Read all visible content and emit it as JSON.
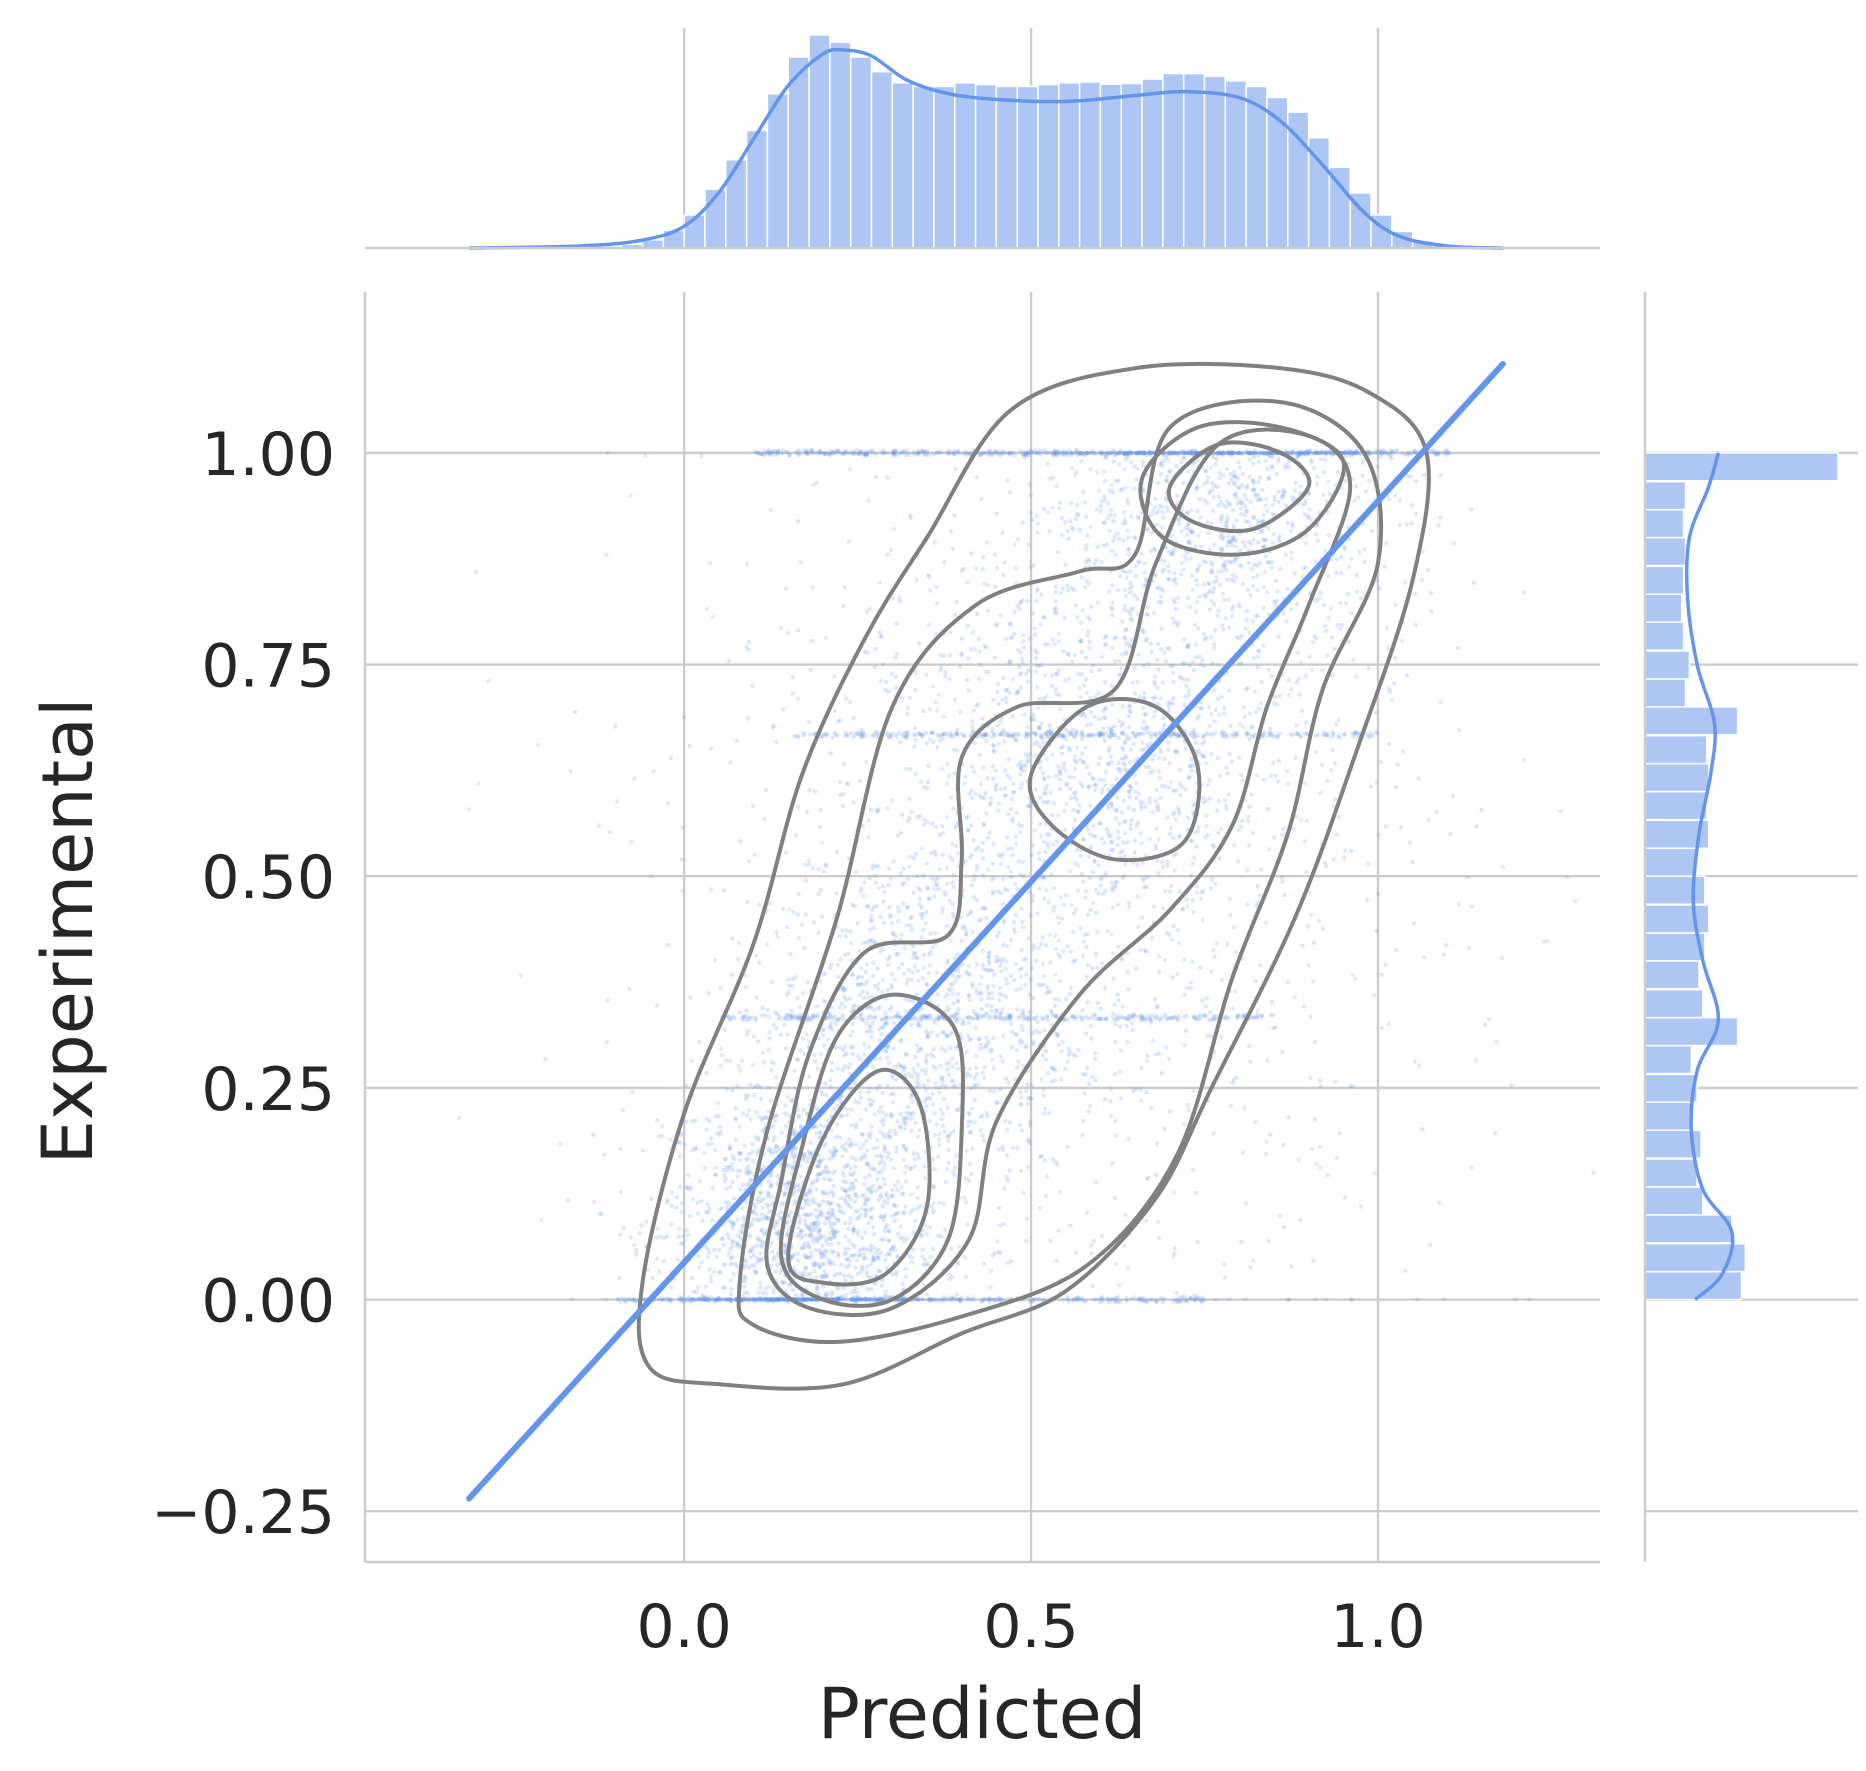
{
  "chart_data": {
    "type": "scatter",
    "subtype": "jointplot with kde contours, marginal histograms and regression line",
    "xlabel": "Predicted",
    "ylabel": "Experimental",
    "xlim": [
      -0.46,
      1.32
    ],
    "ylim": [
      -0.31,
      1.19
    ],
    "x_ticks": [
      {
        "value": 0.0,
        "label": "0.0"
      },
      {
        "value": 0.5,
        "label": "0.5"
      },
      {
        "value": 1.0,
        "label": "1.0"
      }
    ],
    "y_ticks": [
      {
        "value": -0.25,
        "label": "−0.25"
      },
      {
        "value": 0.0,
        "label": "0.00"
      },
      {
        "value": 0.25,
        "label": "0.25"
      },
      {
        "value": 0.5,
        "label": "0.50"
      },
      {
        "value": 0.75,
        "label": "0.75"
      },
      {
        "value": 1.0,
        "label": "1.00"
      }
    ],
    "grid": true,
    "colors": {
      "points": "#6495ed",
      "regression": "#6495ed",
      "contours": "#808080",
      "hist_fill": "#adc6f3",
      "grid": "#cccccc",
      "text": "#262626"
    },
    "regression_line": {
      "x": [
        -0.31,
        1.18
      ],
      "y": [
        -0.235,
        1.105
      ]
    },
    "scatter_clusters": [
      {
        "cx": 0.17,
        "cy": 0.08,
        "sx": 0.1,
        "sy": 0.09,
        "n": 1700
      },
      {
        "cx": 0.33,
        "cy": 0.33,
        "sx": 0.12,
        "sy": 0.1,
        "n": 900
      },
      {
        "cx": 0.58,
        "cy": 0.62,
        "sx": 0.14,
        "sy": 0.12,
        "n": 1000
      },
      {
        "cx": 0.78,
        "cy": 0.94,
        "sx": 0.13,
        "sy": 0.09,
        "n": 1100
      },
      {
        "cx": 0.55,
        "cy": 0.5,
        "sx": 0.28,
        "sy": 0.3,
        "n": 1300
      }
    ],
    "scatter_bands": [
      {
        "y": 1.0,
        "x_from": 0.1,
        "x_to": 1.1,
        "n": 420
      },
      {
        "y": 0.667,
        "x_from": 0.15,
        "x_to": 1.0,
        "n": 300
      },
      {
        "y": 0.333,
        "x_from": 0.05,
        "x_to": 0.85,
        "n": 300
      },
      {
        "y": 0.0,
        "x_from": -0.1,
        "x_to": 0.75,
        "n": 250
      }
    ],
    "kde_contours": [
      [
        [
          -0.06,
          0.02
        ],
        [
          0.0,
          0.22
        ],
        [
          0.1,
          0.42
        ],
        [
          0.17,
          0.62
        ],
        [
          0.26,
          0.78
        ],
        [
          0.35,
          0.9
        ],
        [
          0.47,
          1.05
        ],
        [
          0.65,
          1.1
        ],
        [
          0.86,
          1.1
        ],
        [
          0.99,
          1.07
        ],
        [
          1.07,
          1.0
        ],
        [
          1.05,
          0.85
        ],
        [
          0.97,
          0.65
        ],
        [
          0.88,
          0.45
        ],
        [
          0.76,
          0.25
        ],
        [
          0.68,
          0.12
        ],
        [
          0.55,
          0.01
        ],
        [
          0.4,
          -0.04
        ],
        [
          0.23,
          -0.1
        ],
        [
          0.05,
          -0.1
        ],
        [
          -0.05,
          -0.08
        ]
      ],
      [
        [
          0.08,
          0.02
        ],
        [
          0.12,
          0.2
        ],
        [
          0.22,
          0.45
        ],
        [
          0.3,
          0.7
        ],
        [
          0.42,
          0.82
        ],
        [
          0.57,
          0.86
        ],
        [
          0.65,
          0.88
        ],
        [
          0.7,
          1.03
        ],
        [
          0.86,
          1.06
        ],
        [
          0.98,
          1.0
        ],
        [
          1.0,
          0.87
        ],
        [
          0.92,
          0.72
        ],
        [
          0.87,
          0.55
        ],
        [
          0.79,
          0.38
        ],
        [
          0.71,
          0.17
        ],
        [
          0.58,
          0.04
        ],
        [
          0.4,
          -0.02
        ],
        [
          0.22,
          -0.05
        ],
        [
          0.1,
          -0.03
        ]
      ],
      [
        [
          0.12,
          0.04
        ],
        [
          0.14,
          0.14
        ],
        [
          0.18,
          0.29
        ],
        [
          0.26,
          0.41
        ],
        [
          0.38,
          0.43
        ],
        [
          0.4,
          0.52
        ],
        [
          0.4,
          0.64
        ],
        [
          0.48,
          0.7
        ],
        [
          0.62,
          0.72
        ],
        [
          0.68,
          0.87
        ],
        [
          0.77,
          1.01
        ],
        [
          0.9,
          1.02
        ],
        [
          0.96,
          0.96
        ],
        [
          0.9,
          0.82
        ],
        [
          0.84,
          0.7
        ],
        [
          0.79,
          0.56
        ],
        [
          0.7,
          0.46
        ],
        [
          0.57,
          0.36
        ],
        [
          0.45,
          0.21
        ],
        [
          0.41,
          0.07
        ],
        [
          0.3,
          -0.01
        ],
        [
          0.18,
          -0.01
        ]
      ],
      [
        [
          0.14,
          0.05
        ],
        [
          0.17,
          0.18
        ],
        [
          0.22,
          0.31
        ],
        [
          0.3,
          0.36
        ],
        [
          0.39,
          0.32
        ],
        [
          0.4,
          0.2
        ],
        [
          0.38,
          0.07
        ],
        [
          0.3,
          0.0
        ],
        [
          0.2,
          0.0
        ]
      ],
      [
        [
          0.15,
          0.05
        ],
        [
          0.2,
          0.19
        ],
        [
          0.28,
          0.27
        ],
        [
          0.34,
          0.23
        ],
        [
          0.35,
          0.11
        ],
        [
          0.29,
          0.03
        ],
        [
          0.2,
          0.02
        ]
      ],
      [
        [
          0.5,
          0.62
        ],
        [
          0.58,
          0.7
        ],
        [
          0.68,
          0.7
        ],
        [
          0.74,
          0.63
        ],
        [
          0.72,
          0.54
        ],
        [
          0.62,
          0.52
        ],
        [
          0.53,
          0.56
        ]
      ],
      [
        [
          0.66,
          0.97
        ],
        [
          0.74,
          1.03
        ],
        [
          0.86,
          1.03
        ],
        [
          0.95,
          0.99
        ],
        [
          0.9,
          0.91
        ],
        [
          0.8,
          0.88
        ],
        [
          0.69,
          0.9
        ]
      ],
      [
        [
          0.7,
          0.96
        ],
        [
          0.77,
          1.01
        ],
        [
          0.86,
          1.0
        ],
        [
          0.9,
          0.96
        ],
        [
          0.82,
          0.91
        ],
        [
          0.73,
          0.92
        ]
      ]
    ],
    "marginal_x": {
      "bins_left": [
        -0.09,
        -0.06,
        -0.03,
        0.0,
        0.03,
        0.06,
        0.09,
        0.12,
        0.15,
        0.18,
        0.21,
        0.24,
        0.27,
        0.3,
        0.33,
        0.36,
        0.39,
        0.42,
        0.45,
        0.48,
        0.51,
        0.54,
        0.57,
        0.6,
        0.63,
        0.66,
        0.69,
        0.72,
        0.75,
        0.78,
        0.81,
        0.84,
        0.87,
        0.9,
        0.93,
        0.96,
        0.99,
        1.02,
        1.05,
        1.08
      ],
      "bin_width": 0.03,
      "counts": [
        10,
        22,
        48,
        90,
        160,
        240,
        320,
        420,
        520,
        580,
        560,
        520,
        480,
        450,
        440,
        440,
        450,
        445,
        440,
        440,
        445,
        450,
        452,
        446,
        448,
        460,
        475,
        475,
        468,
        455,
        440,
        410,
        370,
        300,
        220,
        150,
        90,
        45,
        20,
        8
      ],
      "kde_x": [
        -0.31,
        -0.15,
        -0.06,
        0.0,
        0.05,
        0.1,
        0.15,
        0.2,
        0.23,
        0.27,
        0.32,
        0.38,
        0.45,
        0.55,
        0.65,
        0.72,
        0.8,
        0.86,
        0.92,
        0.98,
        1.03,
        1.1,
        1.18
      ],
      "kde_y": [
        0.0,
        0.01,
        0.04,
        0.11,
        0.28,
        0.55,
        0.82,
        0.98,
        1.0,
        0.97,
        0.85,
        0.78,
        0.75,
        0.74,
        0.77,
        0.79,
        0.76,
        0.64,
        0.42,
        0.18,
        0.06,
        0.01,
        0.0
      ]
    },
    "marginal_y": {
      "bins_bottom": [
        0.0,
        0.033,
        0.067,
        0.1,
        0.133,
        0.167,
        0.2,
        0.233,
        0.267,
        0.3,
        0.333,
        0.367,
        0.4,
        0.433,
        0.467,
        0.5,
        0.533,
        0.567,
        0.6,
        0.633,
        0.667,
        0.7,
        0.733,
        0.767,
        0.8,
        0.833,
        0.867,
        0.9,
        0.933,
        0.967
      ],
      "bin_height": 0.033,
      "counts": [
        0.5,
        0.52,
        0.45,
        0.3,
        0.27,
        0.29,
        0.25,
        0.27,
        0.24,
        0.48,
        0.3,
        0.28,
        0.31,
        0.33,
        0.31,
        0.27,
        0.33,
        0.32,
        0.33,
        0.32,
        0.48,
        0.21,
        0.23,
        0.2,
        0.19,
        0.2,
        0.21,
        0.2,
        0.21,
        1.0
      ],
      "kde_y": [
        0.0,
        0.03,
        0.08,
        0.13,
        0.2,
        0.27,
        0.33,
        0.4,
        0.47,
        0.55,
        0.62,
        0.68,
        0.75,
        0.83,
        0.9,
        0.96,
        1.0
      ],
      "kde_x": [
        0.26,
        0.4,
        0.45,
        0.3,
        0.24,
        0.27,
        0.38,
        0.3,
        0.25,
        0.28,
        0.34,
        0.36,
        0.27,
        0.22,
        0.23,
        0.33,
        0.38
      ]
    }
  }
}
